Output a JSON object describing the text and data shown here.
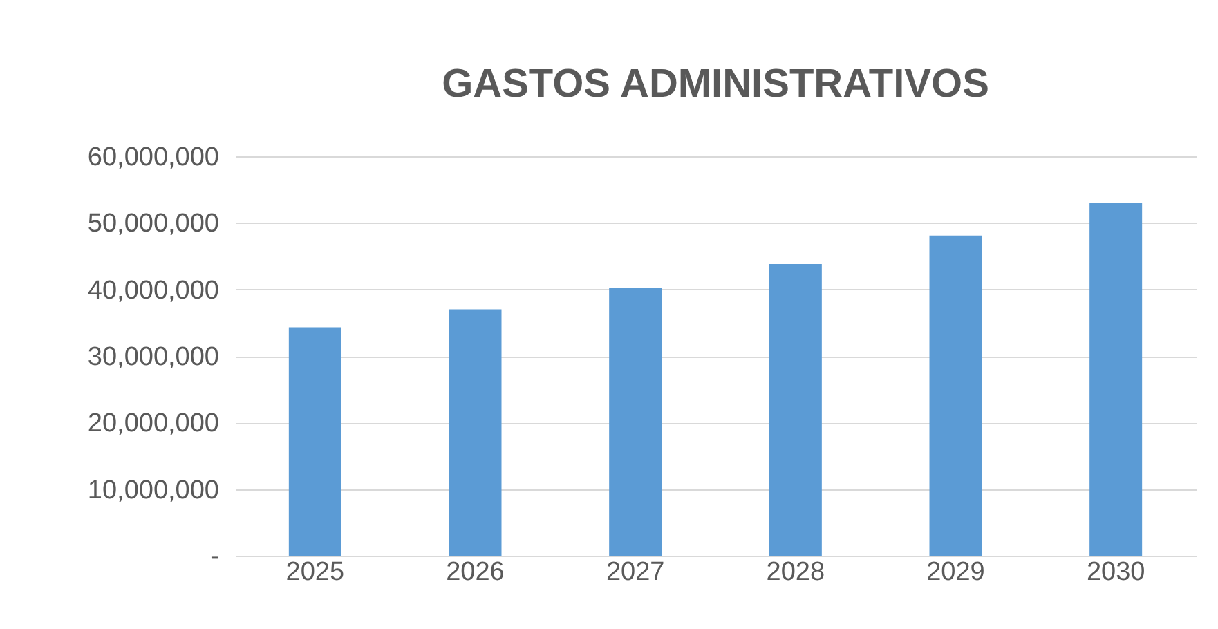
{
  "chart_data": {
    "type": "bar",
    "title": "GASTOS ADMINISTRATIVOS",
    "categories": [
      "2025",
      "2026",
      "2027",
      "2028",
      "2029",
      "2030"
    ],
    "values": [
      34300000,
      37000000,
      40200000,
      43800000,
      48100000,
      53000000
    ],
    "color": "#5b9bd5",
    "ylim": [
      0,
      60000000
    ],
    "yticks": [
      {
        "value": 0,
        "label": "-"
      },
      {
        "value": 10000000,
        "label": "10,000,000"
      },
      {
        "value": 20000000,
        "label": "20,000,000"
      },
      {
        "value": 30000000,
        "label": "30,000,000"
      },
      {
        "value": 40000000,
        "label": "40,000,000"
      },
      {
        "value": 50000000,
        "label": "50,000,000"
      },
      {
        "value": 60000000,
        "label": "60,000,000"
      }
    ],
    "grid": "y"
  }
}
